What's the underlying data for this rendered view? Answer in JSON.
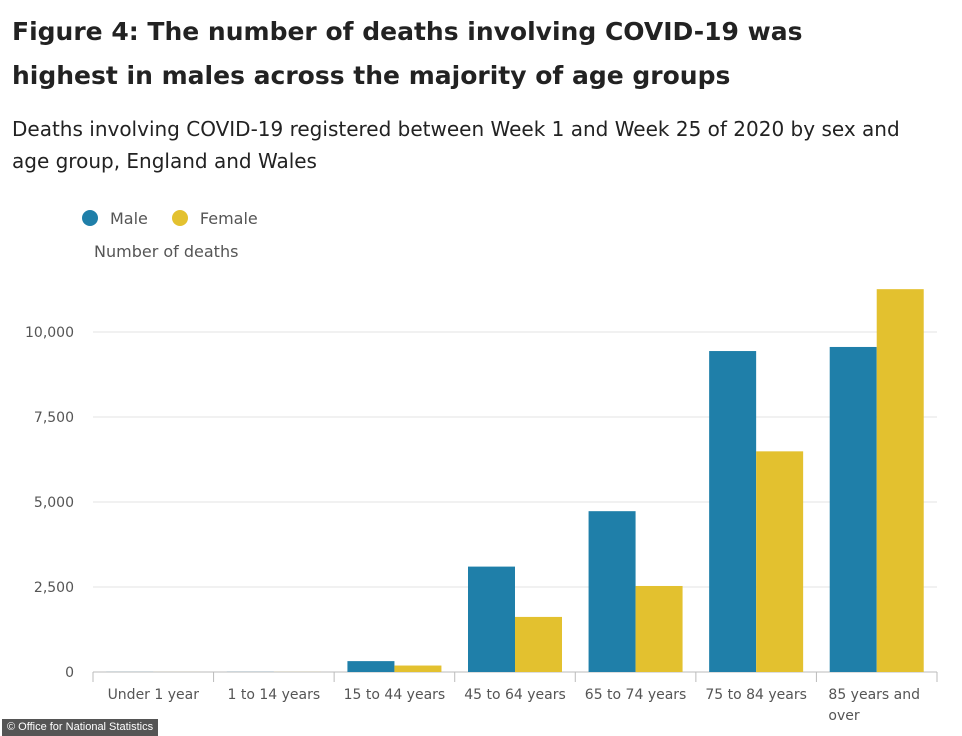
{
  "chart_data": {
    "type": "bar",
    "title": "Figure 4: The number of deaths involving COVID-19 was highest in males across the majority of age groups",
    "subtitle": "Deaths involving COVID-19 registered between Week 1 and Week 25 of 2020 by sex and age group, England and Wales",
    "ylabel": "Number of deaths",
    "xlabel": "",
    "categories": [
      "Under 1 year",
      "1 to 14 years",
      "15 to 44 years",
      "45 to 64 years",
      "65 to 74 years",
      "75 to 84 years",
      "85 years and over"
    ],
    "series": [
      {
        "name": "Male",
        "color": "#1f7fa9",
        "values": [
          2,
          3,
          320,
          3100,
          4730,
          9440,
          9560
        ]
      },
      {
        "name": "Female",
        "color": "#e3c12f",
        "values": [
          1,
          2,
          190,
          1620,
          2530,
          6490,
          11260
        ]
      }
    ],
    "ylim": [
      0,
      11500
    ],
    "yticks": [
      0,
      2500,
      5000,
      7500,
      10000
    ],
    "ytick_labels": [
      "0",
      "2,500",
      "5,000",
      "7,500",
      "10,000"
    ],
    "grid": true,
    "legend": "top-left"
  },
  "credit": "© Office for National Statistics"
}
